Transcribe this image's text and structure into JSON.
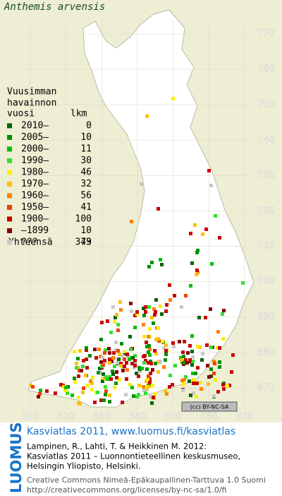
{
  "title": "Anthemis arvensis",
  "legend": {
    "heading": [
      "Vuusimman",
      "havainnon"
    ],
    "col_year": "vuosi",
    "col_count": "lkm",
    "rows": [
      {
        "label": "2010–",
        "count": 0,
        "color": "#006400"
      },
      {
        "label": "2005–",
        "count": 10,
        "color": "#009000"
      },
      {
        "label": "2000–",
        "count": 11,
        "color": "#00c000"
      },
      {
        "label": "1990–",
        "count": 30,
        "color": "#30e030"
      },
      {
        "label": "1980–",
        "count": 46,
        "color": "#f8f000"
      },
      {
        "label": "1970–",
        "count": 32,
        "color": "#ffc000"
      },
      {
        "label": "1960–",
        "count": 56,
        "color": "#ff8000"
      },
      {
        "label": "1950–",
        "count": 41,
        "color": "#f04000"
      },
      {
        "label": "1900–",
        "count": 100,
        "color": "#c80000"
      },
      {
        "label": "–1899",
        "count": 10,
        "color": "#880000"
      },
      {
        "label": "???",
        "count": 43,
        "color": "#c8c8c8"
      }
    ],
    "total_label": "Yhteensä",
    "total": 379
  },
  "grid": {
    "y_labels": [
      770,
      760,
      750,
      740,
      730,
      720,
      710,
      700,
      690,
      680,
      670
    ],
    "x_labels": [
      310,
      320,
      330,
      340,
      350,
      360,
      370
    ]
  },
  "license_badge": "(cc) BY-NC-SA",
  "footer": {
    "logo": "LUOMUS",
    "heading": "Kasviatlas 2011, www.luomus.fi/kasviatlas",
    "citation": [
      "Lampinen, R., Lahti, T. & Heikkinen M. 2012:",
      "Kasviatlas 2011 – Luonnontieteellinen keskusmuseo,",
      "Helsingin Yliopisto, Helsinki."
    ],
    "license": [
      "Creative Commons Nimeä-Epäkaupallinen-Tarttuva 1.0 Suomi",
      "http://creativecommons.org/licenses/by-nc-sa/1.0/fi"
    ]
  }
}
